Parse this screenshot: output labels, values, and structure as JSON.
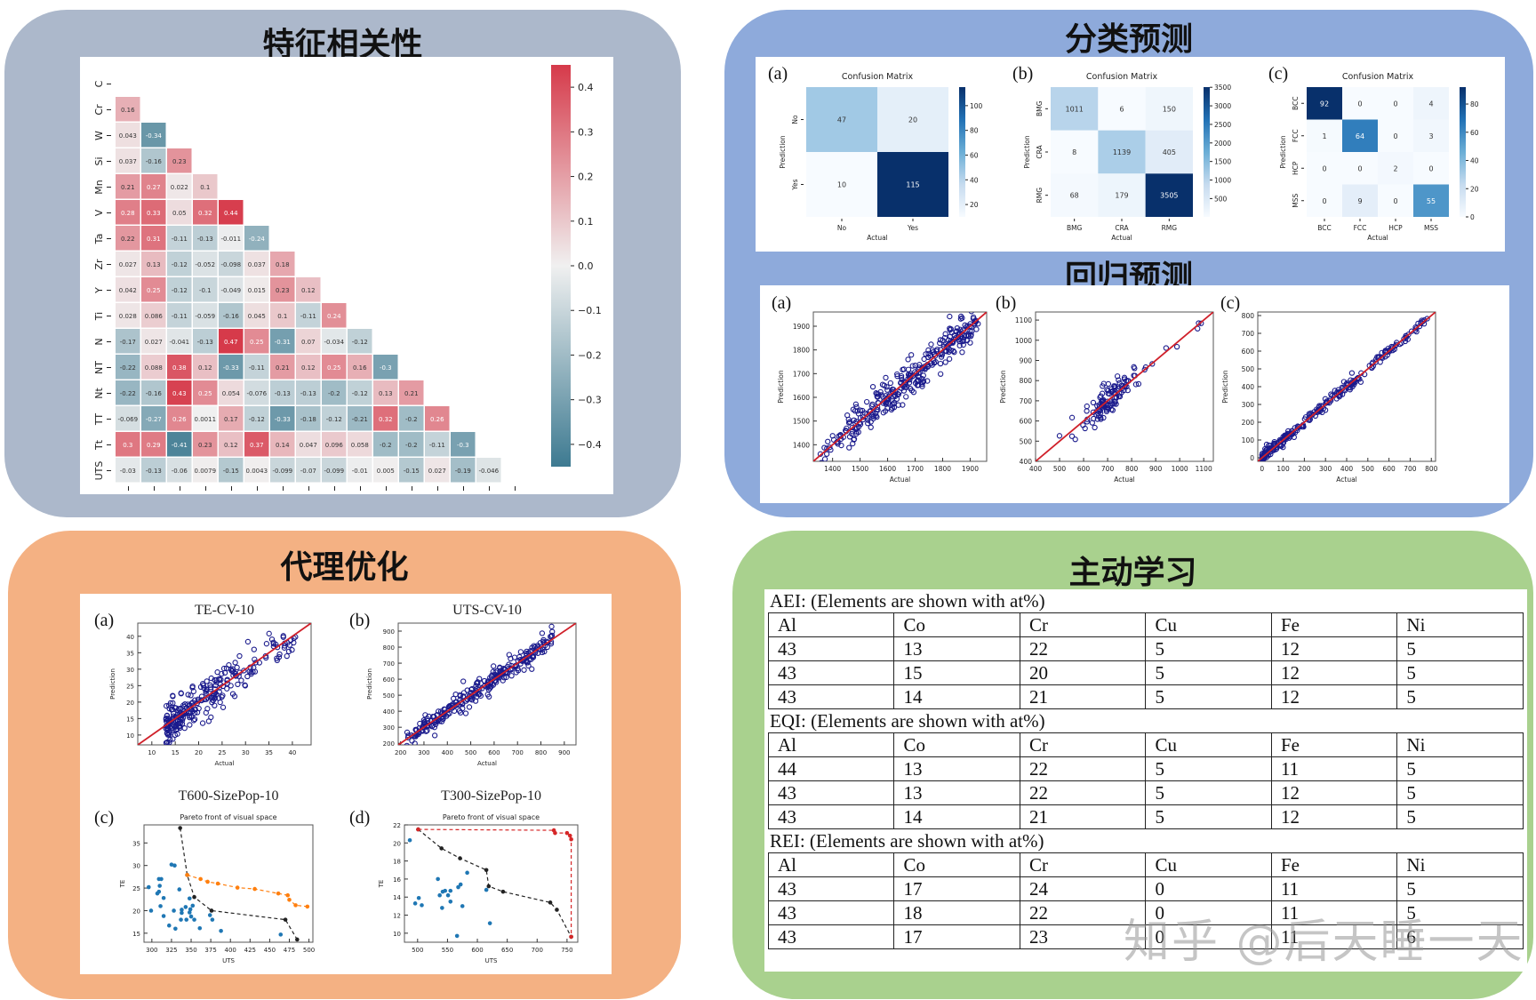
{
  "panels": {
    "correlation": {
      "title": "特征相关性",
      "bg": "#acb8cb"
    },
    "classification": {
      "title": "分类预测",
      "bg": "#8eaadb"
    },
    "regression": {
      "title": "回归预测"
    },
    "surrogate": {
      "title": "代理优化",
      "bg": "#f4b183"
    },
    "active_learning": {
      "title": "主动学习",
      "bg": "#a9d18e"
    }
  },
  "watermark": "知乎 @后天睡一天",
  "chart_data": [
    {
      "id": "correlation-heatmap",
      "type": "heatmap",
      "title": "",
      "labels": [
        "C",
        "Cr",
        "W",
        "Si",
        "Mn",
        "V",
        "Ta",
        "Zr",
        "Y",
        "Ti",
        "N",
        "NT",
        "Nt",
        "TT",
        "Tt",
        "UTS"
      ],
      "lower_triangle": [
        [],
        [
          "0.16"
        ],
        [
          "0.043",
          "-0.34"
        ],
        [
          "0.037",
          "-0.16",
          "0.23"
        ],
        [
          "0.21",
          "0.27",
          "0.022",
          "0.1"
        ],
        [
          "0.28",
          "0.33",
          "0.05",
          "0.32",
          "0.44"
        ],
        [
          "0.22",
          "0.31",
          "-0.11",
          "-0.13",
          "-0.011",
          "-0.24"
        ],
        [
          "0.027",
          "0.13",
          "-0.12",
          "-0.052",
          "-0.098",
          "0.037",
          "0.18"
        ],
        [
          "0.042",
          "0.25",
          "-0.12",
          "-0.1",
          "-0.049",
          "0.015",
          "0.23",
          "0.12"
        ],
        [
          "0.028",
          "0.086",
          "-0.11",
          "-0.059",
          "-0.16",
          "0.045",
          "0.1",
          "-0.11",
          "0.24"
        ],
        [
          "-0.17",
          "0.027",
          "-0.041",
          "-0.13",
          "0.47",
          "0.25",
          "-0.31",
          "0.07",
          "-0.034",
          "-0.12"
        ],
        [
          "-0.22",
          "0.088",
          "0.38",
          "0.12",
          "-0.33",
          "-0.11",
          "0.21",
          "0.12",
          "0.25",
          "0.16",
          "-0.3"
        ],
        [
          "-0.22",
          "-0.16",
          "0.43",
          "0.25",
          "0.054",
          "-0.076",
          "-0.13",
          "-0.13",
          "-0.2",
          "-0.12",
          "0.13",
          "0.21"
        ],
        [
          "-0.069",
          "-0.27",
          "0.26",
          "0.0011",
          "0.17",
          "-0.12",
          "-0.33",
          "-0.18",
          "-0.12",
          "-0.21",
          "0.32",
          "-0.2",
          "0.26"
        ],
        [
          "0.3",
          "0.29",
          "-0.41",
          "0.23",
          "0.12",
          "0.37",
          "0.14",
          "0.047",
          "0.096",
          "0.058",
          "-0.2",
          "-0.2",
          "-0.11",
          "-0.3"
        ],
        [
          "-0.03",
          "-0.13",
          "-0.06",
          "0.0079",
          "-0.15",
          "0.0043",
          "-0.099",
          "-0.07",
          "-0.099",
          "-0.01",
          "0.005",
          "-0.15",
          "0.027",
          "-0.19",
          "-0.046"
        ]
      ],
      "colorbar_ticks": [
        "0.4",
        "0.3",
        "0.2",
        "0.1",
        "0.0",
        "−0.1",
        "−0.2",
        "−0.3",
        "−0.4"
      ],
      "colorbar_range": [
        -0.45,
        0.45
      ],
      "colors": {
        "positive": "#d63a4a",
        "neutral": "#f0f0f0",
        "negative": "#3d7a91"
      }
    },
    {
      "id": "confusion-a",
      "type": "heatmap",
      "panel_label": "(a)",
      "title": "Confusion Matrix",
      "xlabel": "Actual",
      "ylabel": "Prediction",
      "x_categories": [
        "No",
        "Yes"
      ],
      "y_categories": [
        "No",
        "Yes"
      ],
      "values": [
        [
          47,
          20
        ],
        [
          10,
          115
        ]
      ],
      "colorbar_ticks": [
        "100",
        "80",
        "60",
        "40",
        "20"
      ],
      "colorbar_range": [
        10,
        115
      ]
    },
    {
      "id": "confusion-b",
      "type": "heatmap",
      "panel_label": "(b)",
      "title": "Confusion Matrix",
      "xlabel": "Actual",
      "ylabel": "Prediction",
      "x_categories": [
        "BMG",
        "CRA",
        "RMG"
      ],
      "y_categories": [
        "BMG",
        "CRA",
        "RMG"
      ],
      "values": [
        [
          1011,
          6,
          150
        ],
        [
          8,
          1139,
          405
        ],
        [
          68,
          179,
          3505
        ]
      ],
      "colorbar_ticks": [
        "3500",
        "3000",
        "2500",
        "2000",
        "1500",
        "1000",
        "500"
      ],
      "colorbar_range": [
        6,
        3505
      ]
    },
    {
      "id": "confusion-c",
      "type": "heatmap",
      "panel_label": "(c)",
      "title": "Confusion Matrix",
      "xlabel": "Actual",
      "ylabel": "Prediction",
      "x_categories": [
        "BCC",
        "FCC",
        "HCP",
        "MSS"
      ],
      "y_categories": [
        "BCC",
        "FCC",
        "HCP",
        "MSS"
      ],
      "values": [
        [
          92,
          0,
          0,
          4
        ],
        [
          1,
          64,
          0,
          3
        ],
        [
          0,
          0,
          2,
          0
        ],
        [
          0,
          9,
          0,
          55
        ]
      ],
      "colorbar_ticks": [
        "80",
        "60",
        "40",
        "20",
        "0"
      ],
      "colorbar_range": [
        0,
        92
      ]
    },
    {
      "id": "regression-a",
      "type": "scatter",
      "panel_label": "(a)",
      "xlabel": "Actual",
      "ylabel": "Prediction",
      "xlim": [
        1330,
        1960
      ],
      "ylim": [
        1330,
        1960
      ],
      "xticks": [
        "1400",
        "1500",
        "1600",
        "1700",
        "1800",
        "1900"
      ],
      "yticks": [
        "1400",
        "1500",
        "1600",
        "1700",
        "1800",
        "1900"
      ],
      "reference_line": "y = x"
    },
    {
      "id": "regression-b",
      "type": "scatter",
      "panel_label": "(b)",
      "xlabel": "Actual",
      "ylabel": "Prediction",
      "xlim": [
        400,
        1140
      ],
      "ylim": [
        400,
        1140
      ],
      "xticks": [
        "400",
        "500",
        "600",
        "700",
        "800",
        "900",
        "1000",
        "1100"
      ],
      "yticks": [
        "400",
        "500",
        "600",
        "700",
        "800",
        "900",
        "1000",
        "1100"
      ],
      "reference_line": "y = x"
    },
    {
      "id": "regression-c",
      "type": "scatter",
      "panel_label": "(c)",
      "xlabel": "Actual",
      "ylabel": "Prediction",
      "xlim": [
        -20,
        820
      ],
      "ylim": [
        -20,
        820
      ],
      "xticks": [
        "0",
        "100",
        "200",
        "300",
        "400",
        "500",
        "600",
        "700",
        "800"
      ],
      "yticks": [
        "0",
        "100",
        "200",
        "300",
        "400",
        "500",
        "600",
        "700",
        "800"
      ],
      "reference_line": "y = x"
    },
    {
      "id": "surrogate-a",
      "type": "scatter",
      "panel_label": "(a)",
      "title": "TE-CV-10",
      "xlabel": "Actual",
      "ylabel": "Prediction",
      "xlim": [
        7,
        44
      ],
      "ylim": [
        7,
        44
      ],
      "xticks": [
        "10",
        "15",
        "20",
        "25",
        "30",
        "35",
        "40"
      ],
      "yticks": [
        "10",
        "15",
        "20",
        "25",
        "30",
        "35",
        "40"
      ],
      "reference_line": "y = x"
    },
    {
      "id": "surrogate-b",
      "type": "scatter",
      "panel_label": "(b)",
      "title": "UTS-CV-10",
      "xlabel": "Actual",
      "ylabel": "Prediction",
      "xlim": [
        190,
        950
      ],
      "ylim": [
        190,
        950
      ],
      "xticks": [
        "200",
        "300",
        "400",
        "500",
        "600",
        "700",
        "800",
        "900"
      ],
      "yticks": [
        "200",
        "300",
        "400",
        "500",
        "600",
        "700",
        "800",
        "900"
      ],
      "reference_line": "y = x"
    },
    {
      "id": "surrogate-c",
      "type": "scatter",
      "panel_label": "(c)",
      "title": "T600-SizePop-10",
      "subtitle": "Pareto front of visual space",
      "xlabel": "UTS",
      "ylabel": "TE",
      "xlim": [
        290,
        505
      ],
      "ylim": [
        13,
        39
      ],
      "xticks": [
        "300",
        "325",
        "350",
        "375",
        "400",
        "425",
        "450",
        "475",
        "500"
      ],
      "yticks": [
        "15",
        "20",
        "25",
        "30",
        "35"
      ],
      "series": [
        {
          "name": "samples",
          "color": "#1f77b4",
          "points": [
            [
              296,
              25.2
            ],
            [
              299,
              20
            ],
            [
              307,
              23.8
            ],
            [
              309,
              24.2
            ],
            [
              309,
              27
            ],
            [
              310,
              25.5
            ],
            [
              311,
              21
            ],
            [
              312,
              27
            ],
            [
              315,
              22.8
            ],
            [
              315,
              18.8
            ],
            [
              322,
              16.7
            ],
            [
              325,
              30.2
            ],
            [
              328,
              20
            ],
            [
              329,
              30
            ],
            [
              330,
              16
            ],
            [
              335,
              24.7
            ],
            [
              337,
              18
            ],
            [
              338,
              19.5
            ],
            [
              338,
              20.2
            ],
            [
              343,
              20.8
            ],
            [
              344,
              18
            ],
            [
              348,
              19.6
            ],
            [
              348,
              22.7
            ],
            [
              349,
              20.3
            ],
            [
              350,
              18.7
            ],
            [
              352,
              21.1
            ],
            [
              354,
              18
            ],
            [
              361,
              16.1
            ],
            [
              374,
              19
            ],
            [
              377,
              18
            ],
            [
              388,
              15.5
            ],
            [
              464,
              14.7
            ]
          ]
        },
        {
          "name": "front",
          "color": "#222222",
          "style": "dashed",
          "points": [
            [
              336,
              38.3
            ],
            [
              345,
              27.9
            ],
            [
              354,
              23
            ],
            [
              376,
              20
            ],
            [
              470,
              18
            ],
            [
              485,
              13.6
            ]
          ]
        },
        {
          "name": "optimized",
          "color": "#ff7f0e",
          "style": "dashed",
          "points": [
            [
              345,
              27.9
            ],
            [
              362,
              27
            ],
            [
              371,
              26.4
            ],
            [
              384,
              26
            ],
            [
              409,
              25.1
            ],
            [
              431,
              24.8
            ],
            [
              461,
              23.8
            ],
            [
              473,
              23.4
            ],
            [
              475,
              22.4
            ],
            [
              483,
              21.2
            ],
            [
              498,
              20.9
            ]
          ]
        }
      ]
    },
    {
      "id": "surrogate-d",
      "type": "scatter",
      "panel_label": "(d)",
      "title": "T300-SizePop-10",
      "subtitle": "Pareto front of visual space",
      "xlabel": "UTS",
      "ylabel": "TE",
      "xlim": [
        478,
        768
      ],
      "ylim": [
        9,
        22
      ],
      "xticks": [
        "500",
        "550",
        "600",
        "650",
        "700",
        "750"
      ],
      "yticks": [
        "10",
        "12",
        "14",
        "16",
        "18",
        "20",
        "22"
      ],
      "series": [
        {
          "name": "samples",
          "color": "#1f77b4",
          "points": [
            [
              487,
              20.3
            ],
            [
              496,
              13.3
            ],
            [
              502,
              13.9
            ],
            [
              507,
              13.1
            ],
            [
              534,
              16
            ],
            [
              537,
              14.2
            ],
            [
              541,
              12.8
            ],
            [
              542,
              14.6
            ],
            [
              546,
              14.7
            ],
            [
              551,
              14.2
            ],
            [
              555,
              13.5
            ],
            [
              555,
              14.7
            ],
            [
              566,
              9.7
            ],
            [
              568,
              15.1
            ],
            [
              572,
              15.4
            ],
            [
              575,
              13
            ],
            [
              583,
              16.7
            ],
            [
              615,
              14.8
            ],
            [
              621,
              11.1
            ]
          ]
        },
        {
          "name": "front",
          "color": "#222222",
          "style": "dashed",
          "points": [
            [
              501,
              21.5
            ],
            [
              540,
              19.4
            ],
            [
              571,
              18.3
            ],
            [
              615,
              17
            ],
            [
              619,
              15.2
            ],
            [
              643,
              14.6
            ],
            [
              722,
              13.4
            ],
            [
              733,
              12.6
            ],
            [
              757,
              9.6
            ]
          ]
        },
        {
          "name": "optimized",
          "color": "#d62728",
          "style": "dashed",
          "points": [
            [
              501,
              21.5
            ],
            [
              728,
              21.4
            ],
            [
              730,
              21.1
            ],
            [
              750,
              21.1
            ],
            [
              755,
              20.8
            ],
            [
              757,
              20.4
            ],
            [
              757,
              9.6
            ]
          ]
        }
      ]
    },
    {
      "id": "active-learning-tables",
      "type": "table",
      "tables": [
        {
          "caption": "AEI: (Elements are shown with at%)",
          "columns": [
            "Al",
            "Co",
            "Cr",
            "Cu",
            "Fe",
            "Ni"
          ],
          "rows": [
            [
              "43",
              "13",
              "22",
              "5",
              "12",
              "5"
            ],
            [
              "43",
              "15",
              "20",
              "5",
              "12",
              "5"
            ],
            [
              "43",
              "14",
              "21",
              "5",
              "12",
              "5"
            ]
          ]
        },
        {
          "caption": "EQI: (Elements are shown with at%)",
          "columns": [
            "Al",
            "Co",
            "Cr",
            "Cu",
            "Fe",
            "Ni"
          ],
          "rows": [
            [
              "44",
              "13",
              "22",
              "5",
              "11",
              "5"
            ],
            [
              "43",
              "13",
              "22",
              "5",
              "12",
              "5"
            ],
            [
              "43",
              "14",
              "21",
              "5",
              "12",
              "5"
            ]
          ]
        },
        {
          "caption": "REI: (Elements are shown with at%)",
          "columns": [
            "Al",
            "Co",
            "Cr",
            "Cu",
            "Fe",
            "Ni"
          ],
          "rows": [
            [
              "43",
              "17",
              "24",
              "0",
              "11",
              "5"
            ],
            [
              "43",
              "18",
              "22",
              "0",
              "11",
              "5"
            ],
            [
              "43",
              "17",
              "23",
              "0",
              "11",
              "6"
            ]
          ]
        }
      ]
    }
  ]
}
